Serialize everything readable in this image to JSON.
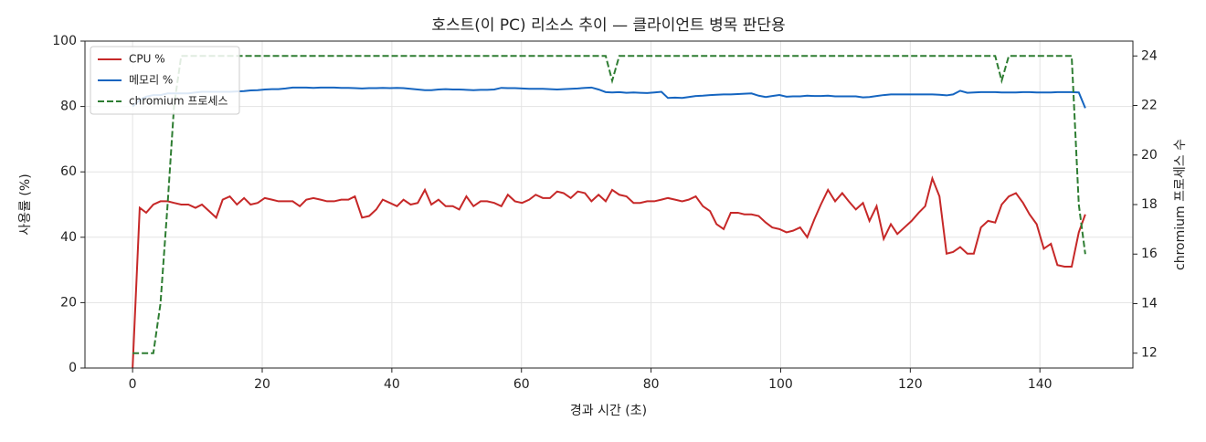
{
  "chart_data": {
    "type": "line",
    "title": "호스트(이 PC) 리소스 추이 — 클라이언트 병목 판단용",
    "xlabel": "경과 시간 (초)",
    "ylabel": "사용률 (%)",
    "y2label": "chromium 프로세스 수",
    "x": [
      0,
      1.1,
      2.1,
      3.2,
      4.3,
      5.4,
      6.4,
      7.5,
      8.6,
      9.7,
      10.7,
      11.8,
      12.9,
      13.9,
      15.0,
      16.1,
      17.2,
      18.2,
      19.3,
      20.4,
      21.5,
      22.5,
      23.6,
      24.7,
      25.8,
      26.8,
      27.9,
      29.0,
      30.0,
      31.1,
      32.2,
      33.3,
      34.3,
      35.4,
      36.5,
      37.6,
      38.6,
      39.7,
      40.8,
      41.8,
      42.9,
      44.0,
      45.1,
      46.1,
      47.2,
      48.3,
      49.4,
      50.4,
      51.5,
      52.6,
      53.7,
      54.7,
      55.8,
      56.9,
      57.9,
      59.0,
      60.1,
      61.2,
      62.2,
      63.3,
      64.4,
      65.5,
      66.5,
      67.6,
      68.7,
      69.8,
      70.8,
      71.9,
      73.0,
      74.0,
      75.1,
      76.2,
      77.3,
      78.3,
      79.4,
      80.5,
      81.6,
      82.6,
      83.7,
      84.8,
      85.8,
      86.9,
      88.0,
      89.1,
      90.1,
      91.2,
      92.3,
      93.4,
      94.4,
      95.5,
      96.6,
      97.7,
      98.7,
      99.8,
      100.9,
      101.9,
      103.0,
      104.1,
      105.2,
      106.2,
      107.3,
      108.4,
      109.5,
      110.5,
      111.6,
      112.7,
      113.7,
      114.8,
      115.9,
      117.0,
      118.0,
      119.1,
      120.2,
      121.3,
      122.3,
      123.4,
      124.5,
      125.6,
      126.6,
      127.7,
      128.8,
      129.8,
      130.9,
      132.0,
      133.1,
      134.1,
      135.2,
      136.3,
      137.4,
      138.4,
      139.5,
      140.6,
      141.7,
      142.7,
      143.8,
      144.9,
      146.0,
      147.0
    ],
    "series": [
      {
        "name": "CPU %",
        "color": "#c62828",
        "values": [
          0,
          49,
          47.5,
          50,
          51,
          51,
          50.5,
          50,
          50,
          49,
          50,
          48,
          46,
          51.5,
          52.5,
          50,
          52,
          50,
          50.5,
          52,
          51.5,
          51,
          51,
          51,
          49.5,
          51.5,
          52,
          51.5,
          51,
          51,
          51.5,
          51.5,
          52.5,
          46,
          46.5,
          48.5,
          51.5,
          50.5,
          49.5,
          51.5,
          50,
          50.5,
          54.5,
          50,
          51.5,
          49.5,
          49.5,
          48.5,
          52.5,
          49.5,
          51,
          51,
          50.5,
          49.5,
          53,
          51,
          50.5,
          51.5,
          53,
          52,
          52,
          54,
          53.5,
          52,
          54,
          53.5,
          51,
          53,
          51,
          54.5,
          53,
          52.5,
          50.5,
          50.5,
          51,
          51,
          51.5,
          52,
          51.5,
          51,
          51.5,
          52.5,
          49.5,
          48,
          44,
          42.5,
          47.5,
          47.5,
          47,
          47,
          46.5,
          44.5,
          43,
          42.5,
          41.5,
          42,
          43,
          40,
          45.5,
          50,
          54.5,
          51,
          53.5,
          51,
          48.5,
          50.5,
          45,
          49.5,
          39.5,
          44,
          41,
          43,
          45,
          47.5,
          49.5,
          58,
          52.5,
          35,
          35.5,
          37,
          35,
          35,
          43,
          45,
          44.5,
          50,
          52.5,
          53.5,
          50.5,
          47,
          44,
          36.5,
          38,
          31.5,
          31,
          31,
          41.5,
          47
        ]
      },
      {
        "name": "메모리 %",
        "color": "#1565c0",
        "values": [
          80,
          82,
          83,
          83.5,
          83.5,
          84,
          84,
          84,
          84,
          84.3,
          84.5,
          84.5,
          84.5,
          84.5,
          84.5,
          84.6,
          84.7,
          84.9,
          85,
          85.2,
          85.3,
          85.3,
          85.5,
          85.8,
          85.8,
          85.8,
          85.7,
          85.8,
          85.8,
          85.8,
          85.7,
          85.7,
          85.6,
          85.5,
          85.6,
          85.6,
          85.7,
          85.6,
          85.7,
          85.6,
          85.4,
          85.2,
          85,
          85,
          85.2,
          85.3,
          85.2,
          85.2,
          85.1,
          85,
          85.1,
          85.1,
          85.2,
          85.7,
          85.6,
          85.6,
          85.5,
          85.4,
          85.4,
          85.4,
          85.3,
          85.2,
          85.3,
          85.4,
          85.5,
          85.7,
          85.8,
          85.2,
          84.4,
          84.3,
          84.4,
          84.2,
          84.3,
          84.2,
          84.1,
          84.3,
          84.5,
          82.6,
          82.7,
          82.6,
          82.9,
          83.2,
          83.3,
          83.5,
          83.6,
          83.7,
          83.7,
          83.8,
          83.9,
          84,
          83.3,
          82.9,
          83.2,
          83.5,
          83,
          83.1,
          83.1,
          83.3,
          83.2,
          83.2,
          83.3,
          83.1,
          83.1,
          83.1,
          83.1,
          82.8,
          82.9,
          83.2,
          83.5,
          83.7,
          83.7,
          83.7,
          83.7,
          83.7,
          83.7,
          83.7,
          83.6,
          83.4,
          83.7,
          84.8,
          84.2,
          84.3,
          84.4,
          84.4,
          84.4,
          84.3,
          84.3,
          84.3,
          84.4,
          84.4,
          84.3,
          84.3,
          84.3,
          84.4,
          84.4,
          84.4,
          84.3,
          79.5
        ]
      },
      {
        "name": "chromium 프로세스",
        "color": "#2e7d32",
        "linestyle": "dashed",
        "axis": "y2",
        "values": [
          12,
          12,
          12,
          12,
          14,
          18,
          22,
          24,
          24,
          24,
          24,
          24,
          24,
          24,
          24,
          24,
          24,
          24,
          24,
          24,
          24,
          24,
          24,
          24,
          24,
          24,
          24,
          24,
          24,
          24,
          24,
          24,
          24,
          24,
          24,
          24,
          24,
          24,
          24,
          24,
          24,
          24,
          24,
          24,
          24,
          24,
          24,
          24,
          24,
          24,
          24,
          24,
          24,
          24,
          24,
          24,
          24,
          24,
          24,
          24,
          24,
          24,
          24,
          24,
          24,
          24,
          24,
          24,
          24,
          23,
          24,
          24,
          24,
          24,
          24,
          24,
          24,
          24,
          24,
          24,
          24,
          24,
          24,
          24,
          24,
          24,
          24,
          24,
          24,
          24,
          24,
          24,
          24,
          24,
          24,
          24,
          24,
          24,
          24,
          24,
          24,
          24,
          24,
          24,
          24,
          24,
          24,
          24,
          24,
          24,
          24,
          24,
          24,
          24,
          24,
          24,
          24,
          24,
          24,
          24,
          24,
          24,
          24,
          24,
          24,
          23,
          24,
          24,
          24,
          24,
          24,
          24,
          24,
          24,
          24,
          24,
          18,
          16
        ]
      }
    ],
    "xlim": [
      -7.35,
      154.35
    ],
    "xticks": [
      0,
      20,
      40,
      60,
      80,
      100,
      120,
      140
    ],
    "ylim": [
      0,
      100
    ],
    "yticks": [
      0,
      20,
      40,
      60,
      80,
      100
    ],
    "y2lim": [
      11.4,
      24.6
    ],
    "y2ticks": [
      12,
      14,
      16,
      18,
      20,
      22,
      24
    ],
    "grid": true,
    "legend": "upper-left"
  }
}
